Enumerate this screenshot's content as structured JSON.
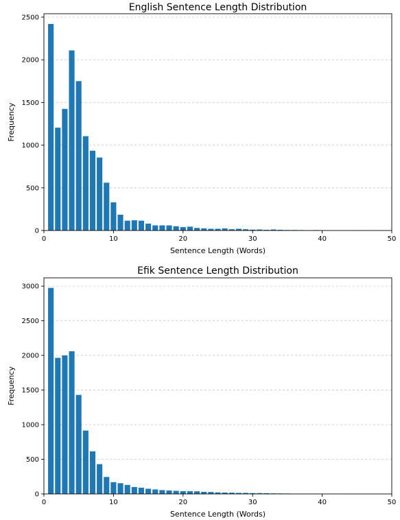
{
  "chart_data": [
    {
      "type": "bar",
      "title": "English Sentence Length Distribution",
      "xlabel": "Sentence Length (Words)",
      "ylabel": "Frequency",
      "xlim": [
        0,
        50
      ],
      "ylim": [
        0,
        2540
      ],
      "xticks": [
        0,
        10,
        20,
        30,
        40,
        50
      ],
      "yticks": [
        0,
        500,
        1000,
        1500,
        2000,
        2500
      ],
      "grid": "y-dashed",
      "bar_color": "#1f77b4",
      "x": [
        1,
        2,
        3,
        4,
        5,
        6,
        7,
        8,
        9,
        10,
        11,
        12,
        13,
        14,
        15,
        16,
        17,
        18,
        19,
        20,
        21,
        22,
        23,
        24,
        25,
        26,
        27,
        28,
        29,
        30,
        31,
        32,
        33,
        34,
        35,
        36,
        37,
        38,
        39,
        40,
        45,
        46,
        48
      ],
      "values": [
        2420,
        1205,
        1425,
        2110,
        1750,
        1105,
        935,
        855,
        560,
        330,
        185,
        115,
        120,
        115,
        80,
        60,
        60,
        60,
        50,
        40,
        45,
        30,
        25,
        20,
        20,
        25,
        15,
        20,
        15,
        10,
        12,
        8,
        12,
        8,
        6,
        6,
        5,
        4,
        5,
        4,
        3,
        3,
        3
      ]
    },
    {
      "type": "bar",
      "title": "Efik Sentence Length Distribution",
      "xlabel": "Sentence Length (Words)",
      "ylabel": "Frequency",
      "xlim": [
        0,
        50
      ],
      "ylim": [
        0,
        3120
      ],
      "xticks": [
        0,
        10,
        20,
        30,
        40,
        50
      ],
      "yticks": [
        0,
        500,
        1000,
        1500,
        2000,
        2500,
        3000
      ],
      "grid": "y-dashed",
      "bar_color": "#1f77b4",
      "x": [
        1,
        2,
        3,
        4,
        5,
        6,
        7,
        8,
        9,
        10,
        11,
        12,
        13,
        14,
        15,
        16,
        17,
        18,
        19,
        20,
        21,
        22,
        23,
        24,
        25,
        26,
        27,
        28,
        29,
        30,
        31,
        32,
        33,
        34,
        35,
        36,
        37,
        38,
        39,
        40,
        41,
        43
      ],
      "values": [
        2975,
        1965,
        2000,
        2060,
        1430,
        915,
        615,
        430,
        245,
        170,
        155,
        130,
        100,
        90,
        75,
        65,
        55,
        50,
        45,
        40,
        40,
        38,
        30,
        28,
        22,
        20,
        18,
        15,
        15,
        12,
        12,
        10,
        8,
        7,
        6,
        5,
        5,
        4,
        4,
        3,
        3,
        3
      ]
    }
  ]
}
